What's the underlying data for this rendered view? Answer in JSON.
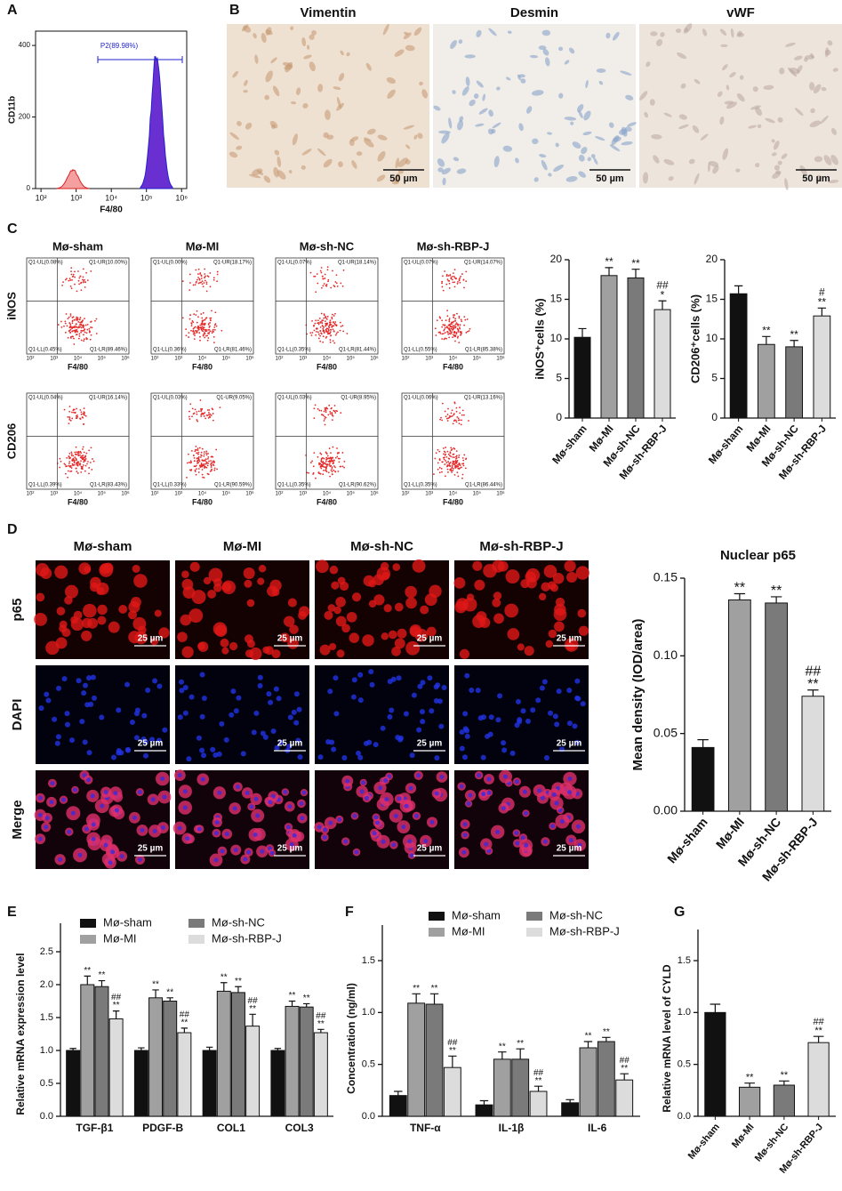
{
  "panel_labels": [
    "A",
    "B",
    "C",
    "D",
    "E",
    "F",
    "G"
  ],
  "micrographs": [
    {
      "title": "Vimentin",
      "scale": "50 µm"
    },
    {
      "title": "Desmin",
      "scale": "50 µm"
    },
    {
      "title": "vWF",
      "scale": "50 µm"
    }
  ],
  "flow_plots": {
    "columns": [
      "Mø-sham",
      "Mø-MI",
      "Mø-sh-NC",
      "Mø-sh-RBP-J"
    ],
    "xlabel": "F4/80",
    "xticks": [
      "10²",
      "10³",
      "10⁴",
      "10⁵",
      "10⁶"
    ],
    "rows": [
      {
        "label": "iNOS",
        "plots": [
          {
            "ul": "Q1-UL(0.08%)",
            "ur": "Q1-UR(10.00%)",
            "ll": "Q1-LL(0.45%)",
            "lr": "Q1-LR(89.46%)"
          },
          {
            "ul": "Q1-UL(0.00%)",
            "ur": "Q1-UR(18.17%)",
            "ll": "Q1-LL(0.36%)",
            "lr": "Q1-LR(81.46%)"
          },
          {
            "ul": "Q1-UL(0.07%)",
            "ur": "Q1-UR(18.14%)",
            "ll": "Q1-LL(0.35%)",
            "lr": "Q1-LR(81.44%)"
          },
          {
            "ul": "Q1-UL(0.07%)",
            "ur": "Q1-UR(14.07%)",
            "ll": "Q1-LL(0.55%)",
            "lr": "Q1-LR(85.38%)"
          }
        ]
      },
      {
        "label": "CD206",
        "plots": [
          {
            "ul": "Q1-UL(0.04%)",
            "ur": "Q1-UR(16.14%)",
            "ll": "Q1-LL(0.39%)",
            "lr": "Q1-LR(83.43%)"
          },
          {
            "ul": "Q1-UL(0.03%)",
            "ur": "Q1-UR(9.05%)",
            "ll": "Q1-LL(0.33%)",
            "lr": "Q1-LR(90.59%)"
          },
          {
            "ul": "Q1-UL(0.03%)",
            "ur": "Q1-UR(8.95%)",
            "ll": "Q1-LL(0.35%)",
            "lr": "Q1-LR(90.62%)"
          },
          {
            "ul": "Q1-UL(0.06%)",
            "ur": "Q1-UR(13.16%)",
            "ll": "Q1-LL(0.35%)",
            "lr": "Q1-LR(86.44%)"
          }
        ]
      }
    ]
  },
  "fluorescence": {
    "columns": [
      "Mø-sham",
      "Mø-MI",
      "Mø-sh-NC",
      "Mø-sh-RBP-J"
    ],
    "rows": [
      "p65",
      "DAPI",
      "Merge"
    ],
    "scale": "25 µm"
  },
  "chart_data": [
    {
      "type": "flow_histogram",
      "xlabel": "F4/80",
      "ylabel": "CD11b",
      "gate_label": "P2(89.98%)",
      "log_x": true,
      "xlim": [
        70,
        1400000
      ],
      "xticks": [
        {
          "value": 100,
          "label": "10²"
        },
        {
          "value": 1000,
          "label": "10³"
        },
        {
          "value": 10000,
          "label": "10⁴"
        },
        {
          "value": 100000,
          "label": "10⁵"
        },
        {
          "value": 1000000,
          "label": "10⁶"
        }
      ],
      "ylim": [
        0,
        440
      ],
      "yticks": [
        0,
        200,
        400
      ]
    },
    {
      "type": "bar",
      "ylabel": "iNOS⁺cells (%)",
      "categories": [
        "Mø-sham",
        "Mø-MI",
        "Mø-sh-NC",
        "Mø-sh-RBP-J"
      ],
      "values": [
        10.2,
        18.0,
        17.7,
        13.7
      ],
      "errors": [
        1.1,
        1.0,
        1.1,
        1.1
      ],
      "colors": [
        "#111111",
        "#a0a0a0",
        "#7a7a7a",
        "#dcdcdc"
      ],
      "annotations": [
        [],
        [
          "**"
        ],
        [
          "**"
        ],
        [
          "##",
          "*"
        ]
      ],
      "ylim": [
        0,
        20
      ],
      "yticks": [
        0,
        5,
        10,
        15,
        20
      ]
    },
    {
      "type": "bar",
      "ylabel": "CD206⁺cells (%)",
      "categories": [
        "Mø-sham",
        "Mø-MI",
        "Mø-sh-NC",
        "Mø-sh-RBP-J"
      ],
      "values": [
        15.7,
        9.3,
        9.0,
        12.9
      ],
      "errors": [
        1.0,
        1.0,
        0.8,
        1.0
      ],
      "colors": [
        "#111111",
        "#a0a0a0",
        "#7a7a7a",
        "#dcdcdc"
      ],
      "annotations": [
        [],
        [
          "**"
        ],
        [
          "**"
        ],
        [
          "#",
          "**"
        ]
      ],
      "ylim": [
        0,
        20
      ],
      "yticks": [
        0,
        5,
        10,
        15,
        20
      ]
    },
    {
      "type": "bar",
      "title": "Nuclear p65",
      "ylabel": "Mean density (IOD/area)",
      "categories": [
        "Mø-sham",
        "Mø-MI",
        "Mø-sh-NC",
        "Mø-sh-RBP-J"
      ],
      "values": [
        0.041,
        0.136,
        0.134,
        0.074
      ],
      "errors": [
        0.005,
        0.004,
        0.004,
        0.004
      ],
      "colors": [
        "#111111",
        "#a0a0a0",
        "#7a7a7a",
        "#dcdcdc"
      ],
      "annotations": [
        [],
        [
          "**"
        ],
        [
          "**"
        ],
        [
          "##",
          "**"
        ]
      ],
      "ylim": [
        0,
        0.15
      ],
      "yticks": [
        {
          "value": 0,
          "label": "0.00"
        },
        {
          "value": 0.05,
          "label": "0.05"
        },
        {
          "value": 0.1,
          "label": "0.10"
        },
        {
          "value": 0.15,
          "label": "0.15"
        }
      ]
    },
    {
      "type": "grouped_bar",
      "ylabel": "Relative mRNA expression level",
      "categories": [
        "TGF-β1",
        "PDGF-B",
        "COL1",
        "COL3"
      ],
      "series": [
        {
          "name": "Mø-sham",
          "color": "#111111",
          "values": [
            1.0,
            1.0,
            1.0,
            1.0
          ],
          "errors": [
            0.03,
            0.04,
            0.05,
            0.03
          ],
          "annotations": [
            [],
            [],
            [],
            []
          ]
        },
        {
          "name": "Mø-MI",
          "color": "#a0a0a0",
          "values": [
            2.0,
            1.8,
            1.9,
            1.67
          ],
          "errors": [
            0.13,
            0.12,
            0.13,
            0.08
          ],
          "annotations": [
            [
              "**"
            ],
            [
              "**"
            ],
            [
              "**"
            ],
            [
              "**"
            ]
          ]
        },
        {
          "name": "Mø-sh-NC",
          "color": "#7a7a7a",
          "values": [
            1.97,
            1.75,
            1.88,
            1.66
          ],
          "errors": [
            0.09,
            0.05,
            0.09,
            0.05
          ],
          "annotations": [
            [
              "**"
            ],
            [
              "**"
            ],
            [
              "**"
            ],
            [
              "**"
            ]
          ]
        },
        {
          "name": "Mø-sh-RBP-J",
          "color": "#dcdcdc",
          "values": [
            1.48,
            1.27,
            1.37,
            1.27
          ],
          "errors": [
            0.12,
            0.07,
            0.18,
            0.05
          ],
          "annotations": [
            [
              "##",
              "**"
            ],
            [
              "##",
              "**"
            ],
            [
              "##",
              "**"
            ],
            [
              "##",
              "**"
            ]
          ]
        }
      ],
      "ylim": [
        0,
        2.5
      ],
      "yticks": [
        {
          "value": 0,
          "label": "0.0"
        },
        0.5,
        {
          "value": 1,
          "label": "1.0"
        },
        1.5,
        {
          "value": 2,
          "label": "2.0"
        },
        2.5
      ]
    },
    {
      "type": "grouped_bar",
      "ylabel": "Concentration (ng/ml)",
      "categories": [
        "TNF-α",
        "IL-1β",
        "IL-6"
      ],
      "series": [
        {
          "name": "Mø-sham",
          "color": "#111111",
          "values": [
            0.2,
            0.11,
            0.13
          ],
          "errors": [
            0.04,
            0.04,
            0.03
          ],
          "annotations": [
            [],
            [],
            []
          ]
        },
        {
          "name": "Mø-MI",
          "color": "#a0a0a0",
          "values": [
            1.09,
            0.55,
            0.66
          ],
          "errors": [
            0.09,
            0.07,
            0.06
          ],
          "annotations": [
            [
              "**"
            ],
            [
              "**"
            ],
            [
              "**"
            ]
          ]
        },
        {
          "name": "Mø-sh-NC",
          "color": "#7a7a7a",
          "values": [
            1.08,
            0.55,
            0.72
          ],
          "errors": [
            0.1,
            0.1,
            0.04
          ],
          "annotations": [
            [
              "**"
            ],
            [
              "**"
            ],
            [
              "**"
            ]
          ]
        },
        {
          "name": "Mø-sh-RBP-J",
          "color": "#dcdcdc",
          "values": [
            0.47,
            0.24,
            0.35
          ],
          "errors": [
            0.11,
            0.05,
            0.06
          ],
          "annotations": [
            [
              "##",
              "**"
            ],
            [
              "##",
              "**"
            ],
            [
              "##",
              "**"
            ]
          ]
        }
      ],
      "ylim": [
        0,
        1.5
      ],
      "yticks": [
        {
          "value": 0,
          "label": "0.0"
        },
        0.5,
        {
          "value": 1,
          "label": "1.0"
        },
        1.5
      ]
    },
    {
      "type": "bar",
      "ylabel": "Relative mRNA  level of CYLD",
      "categories": [
        "Mø-sham",
        "Mø-MI",
        "Mø-sh-NC",
        "Mø-sh-RBP-J"
      ],
      "values": [
        1.0,
        0.28,
        0.3,
        0.71
      ],
      "errors": [
        0.08,
        0.04,
        0.04,
        0.06
      ],
      "colors": [
        "#111111",
        "#a0a0a0",
        "#7a7a7a",
        "#dcdcdc"
      ],
      "annotations": [
        [],
        [
          "**"
        ],
        [
          "**"
        ],
        [
          "##",
          "**"
        ]
      ],
      "ylim": [
        0,
        1.5
      ],
      "yticks": [
        {
          "value": 0,
          "label": "0.0"
        },
        0.5,
        {
          "value": 1,
          "label": "1.0"
        },
        1.5
      ]
    }
  ]
}
